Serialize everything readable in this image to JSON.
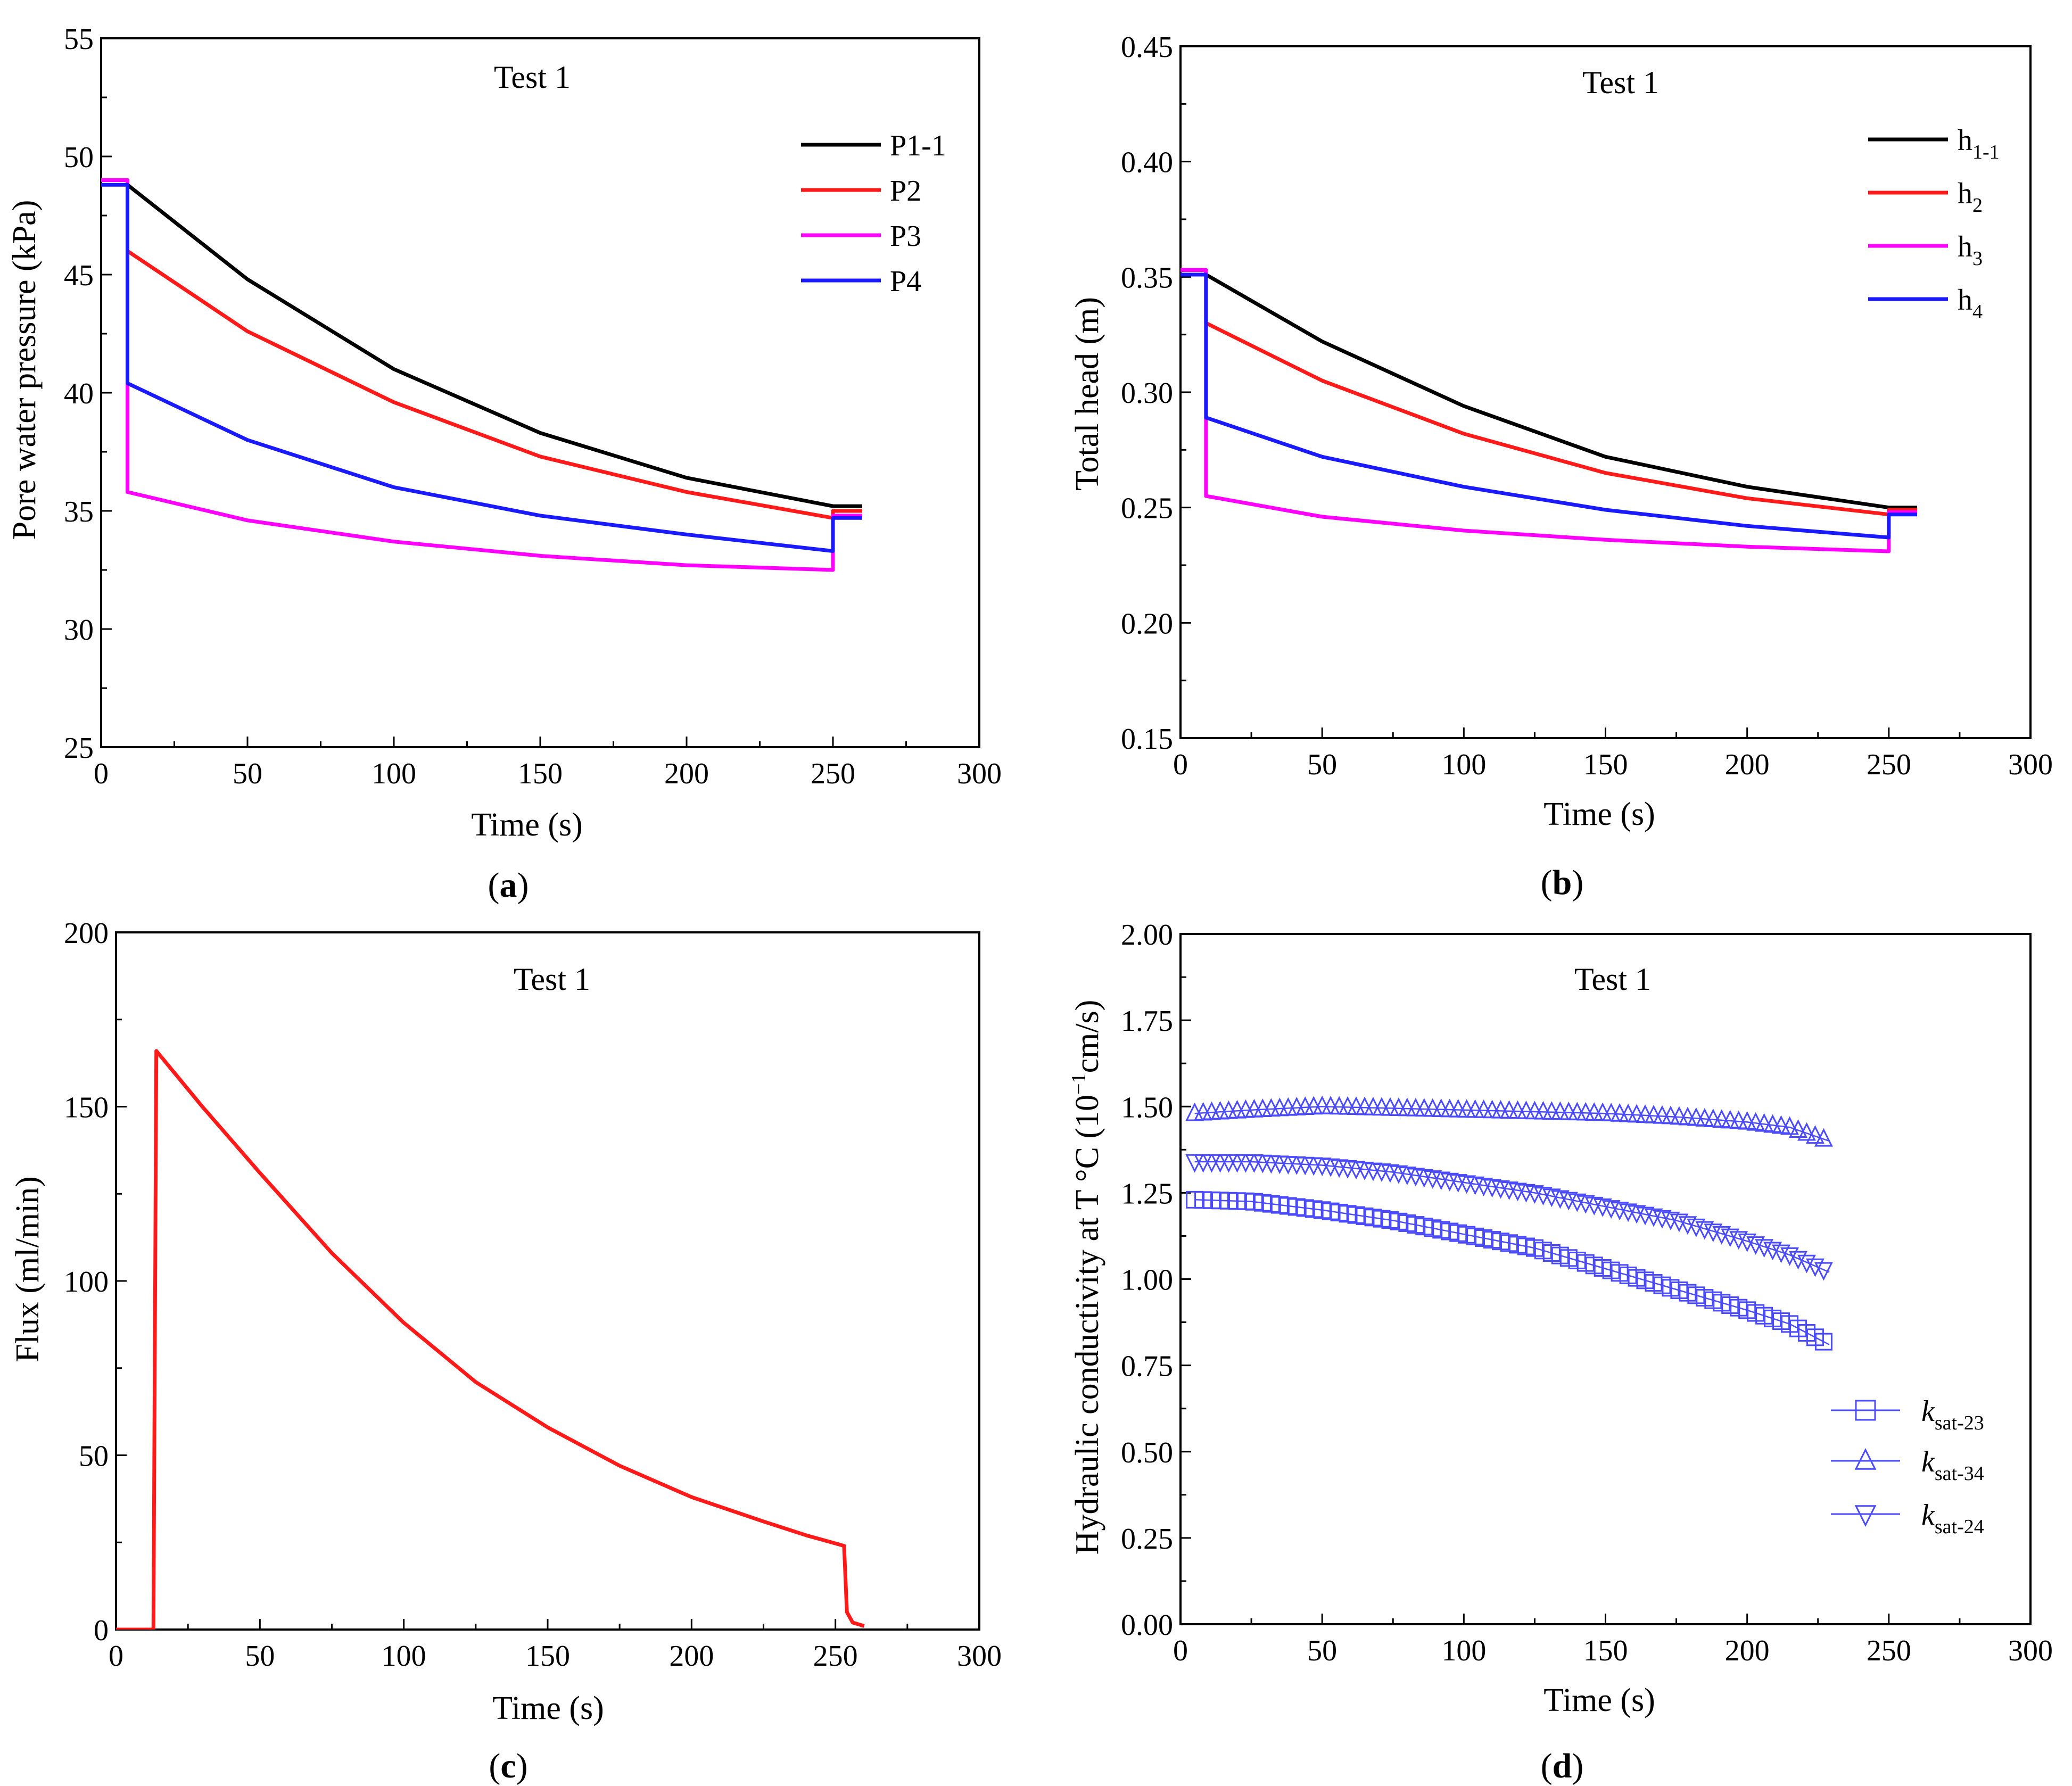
{
  "figure": {
    "captions": [
      {
        "open": "(",
        "letter": "a",
        "close": ")"
      },
      {
        "open": "(",
        "letter": "b",
        "close": ")"
      },
      {
        "open": "(",
        "letter": "c",
        "close": ")"
      },
      {
        "open": "(",
        "letter": "d",
        "close": ")"
      }
    ]
  },
  "chart_data": [
    {
      "type": "line",
      "title": "Test 1",
      "xlabel": "Time (s)",
      "ylabel": "Pore water pressure (kPa)",
      "xlim": [
        0,
        300
      ],
      "ylim": [
        25,
        55
      ],
      "xticks": [
        0,
        50,
        100,
        150,
        200,
        250,
        300
      ],
      "yticks": [
        25,
        30,
        35,
        40,
        45,
        50,
        55
      ],
      "legend_position": "top-right",
      "series": [
        {
          "name": "P1-1",
          "color": "#000000",
          "x": [
            0,
            9,
            9,
            50,
            100,
            150,
            200,
            250,
            250,
            260
          ],
          "y": [
            49.0,
            49.0,
            48.8,
            44.8,
            41.0,
            38.3,
            36.4,
            35.2,
            35.2,
            35.2
          ]
        },
        {
          "name": "P2",
          "color": "#ff1a1a",
          "x": [
            0,
            9,
            9,
            50,
            100,
            150,
            200,
            250,
            250,
            260
          ],
          "y": [
            49.0,
            49.0,
            46.0,
            42.6,
            39.6,
            37.3,
            35.8,
            34.7,
            35.0,
            35.0
          ]
        },
        {
          "name": "P3",
          "color": "#ff00ff",
          "x": [
            0,
            9,
            9,
            50,
            100,
            150,
            200,
            250,
            250,
            260
          ],
          "y": [
            49.0,
            49.0,
            35.8,
            34.6,
            33.7,
            33.1,
            32.7,
            32.5,
            34.8,
            34.8
          ]
        },
        {
          "name": "P4",
          "color": "#1a1aff",
          "x": [
            0,
            9,
            9,
            50,
            100,
            150,
            200,
            250,
            250,
            260
          ],
          "y": [
            48.8,
            48.8,
            40.4,
            38.0,
            36.0,
            34.8,
            34.0,
            33.3,
            34.7,
            34.7
          ]
        }
      ]
    },
    {
      "type": "line",
      "title": "Test 1",
      "xlabel": "Time (s)",
      "ylabel": "Total head (m)",
      "xlim": [
        0,
        300
      ],
      "ylim": [
        0.15,
        0.45
      ],
      "xticks": [
        0,
        50,
        100,
        150,
        200,
        250,
        300
      ],
      "yticks": [
        "0.15",
        "0.20",
        "0.25",
        "0.30",
        "0.35",
        "0.40",
        "0.45"
      ],
      "legend_position": "top-right",
      "series": [
        {
          "name": "h",
          "sub": "1-1",
          "color": "#000000",
          "x": [
            0,
            9,
            9,
            50,
            100,
            150,
            200,
            250,
            250,
            260
          ],
          "y": [
            0.353,
            0.353,
            0.351,
            0.322,
            0.294,
            0.272,
            0.259,
            0.25,
            0.25,
            0.25
          ]
        },
        {
          "name": "h",
          "sub": "2",
          "color": "#ff1a1a",
          "x": [
            0,
            9,
            9,
            50,
            100,
            150,
            200,
            250,
            250,
            260
          ],
          "y": [
            0.353,
            0.353,
            0.33,
            0.305,
            0.282,
            0.265,
            0.254,
            0.247,
            0.249,
            0.249
          ]
        },
        {
          "name": "h",
          "sub": "3",
          "color": "#ff00ff",
          "x": [
            0,
            9,
            9,
            50,
            100,
            150,
            200,
            250,
            250,
            260
          ],
          "y": [
            0.353,
            0.353,
            0.255,
            0.246,
            0.24,
            0.236,
            0.233,
            0.231,
            0.248,
            0.248
          ]
        },
        {
          "name": "h",
          "sub": "4",
          "color": "#1a1aff",
          "x": [
            0,
            9,
            9,
            50,
            100,
            150,
            200,
            250,
            250,
            260
          ],
          "y": [
            0.351,
            0.351,
            0.289,
            0.272,
            0.259,
            0.249,
            0.242,
            0.237,
            0.247,
            0.247
          ]
        }
      ]
    },
    {
      "type": "line",
      "title": "Test 1",
      "xlabel": "Time (s)",
      "ylabel": "Flux (ml/min)",
      "xlim": [
        0,
        300
      ],
      "ylim": [
        0,
        200
      ],
      "xticks": [
        0,
        50,
        100,
        150,
        200,
        250,
        300
      ],
      "yticks": [
        0,
        50,
        100,
        150,
        200
      ],
      "series": [
        {
          "name": "Flux",
          "color": "#ff1a1a",
          "x": [
            0,
            13,
            14,
            20,
            30,
            50,
            75,
            100,
            125,
            150,
            175,
            200,
            225,
            240,
            253,
            254,
            256,
            260
          ],
          "y": [
            0,
            0,
            166,
            160,
            150,
            131,
            108,
            88,
            71,
            58,
            47,
            38,
            31,
            27,
            24,
            5,
            2,
            1
          ]
        }
      ]
    },
    {
      "type": "scatter",
      "title": "Test 1",
      "xlabel": "Time (s)",
      "ylabel": "Hydraulic conductivity at T °C (10",
      "ylabel_exp": "−1",
      "ylabel_unit": "cm/s)",
      "xlim": [
        0,
        300
      ],
      "ylim": [
        0,
        2
      ],
      "xticks": [
        0,
        50,
        100,
        150,
        200,
        250,
        300
      ],
      "yticks": [
        "0.00",
        "0.25",
        "0.50",
        "0.75",
        "1.00",
        "1.25",
        "1.50",
        "1.75",
        "2.00"
      ],
      "legend_position": "bottom-right",
      "marker_spacing_s": 3,
      "series": [
        {
          "name": "k",
          "sub": "sat-23",
          "marker": "square",
          "color": "#4a4aff",
          "x": [
            5,
            25,
            50,
            75,
            100,
            125,
            150,
            175,
            200,
            215,
            229
          ],
          "y": [
            1.23,
            1.225,
            1.2,
            1.17,
            1.13,
            1.09,
            1.03,
            0.97,
            0.91,
            0.87,
            0.81
          ]
        },
        {
          "name": "k",
          "sub": "sat-34",
          "marker": "triangle-up",
          "color": "#4a4aff",
          "x": [
            5,
            25,
            50,
            75,
            100,
            125,
            150,
            175,
            200,
            215,
            229
          ],
          "y": [
            1.48,
            1.49,
            1.5,
            1.495,
            1.49,
            1.485,
            1.48,
            1.47,
            1.455,
            1.44,
            1.4
          ]
        },
        {
          "name": "k",
          "sub": "sat-24",
          "marker": "triangle-down",
          "color": "#4a4aff",
          "x": [
            5,
            25,
            50,
            75,
            100,
            125,
            150,
            175,
            200,
            215,
            229
          ],
          "y": [
            1.34,
            1.34,
            1.33,
            1.31,
            1.28,
            1.25,
            1.21,
            1.17,
            1.11,
            1.07,
            1.02
          ]
        }
      ]
    }
  ]
}
